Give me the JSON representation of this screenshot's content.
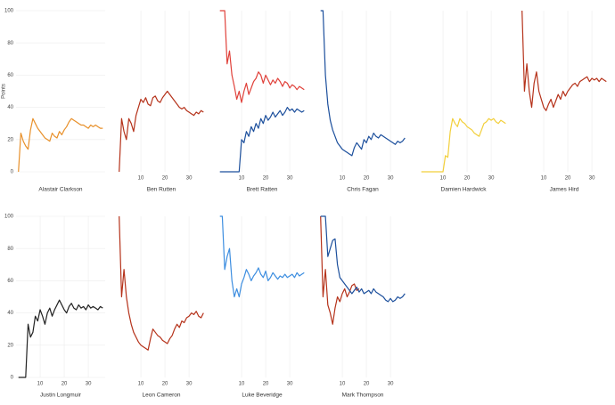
{
  "chart_data": [
    {
      "type": "line",
      "title": "Alastair Clarkson",
      "y_label": "Points",
      "xlim": [
        0,
        37
      ],
      "ylim": [
        0,
        100
      ],
      "yticks": [
        0,
        20,
        40,
        60,
        80,
        100
      ],
      "grid": true,
      "x": [
        1,
        2,
        3,
        4,
        5,
        6,
        7,
        8,
        9,
        10,
        11,
        12,
        13,
        14,
        15,
        16,
        17,
        18,
        19,
        20,
        21,
        22,
        23,
        24,
        25,
        26,
        27,
        28,
        29,
        30,
        31,
        32,
        33,
        34,
        35,
        36
      ],
      "series": [
        {
          "name": "Alastair Clarkson",
          "color": "#e8902a",
          "values": [
            0,
            24,
            19,
            16,
            14,
            26,
            33,
            30,
            27,
            25,
            23,
            21,
            20,
            19,
            24,
            22,
            21,
            25,
            23,
            26,
            28,
            31,
            33,
            32,
            31,
            30,
            29,
            29,
            28,
            27,
            29,
            28,
            29,
            28,
            27,
            27
          ]
        }
      ]
    },
    {
      "type": "line",
      "title": "Ben Rutten",
      "xlim": [
        0,
        37
      ],
      "ylim": [
        0,
        100
      ],
      "xticks": [
        10,
        20,
        30
      ],
      "grid": true,
      "x": [
        1,
        2,
        3,
        4,
        5,
        6,
        7,
        8,
        9,
        10,
        11,
        12,
        13,
        14,
        15,
        16,
        17,
        18,
        19,
        20,
        21,
        22,
        23,
        24,
        25,
        26,
        27,
        28,
        29,
        30,
        31,
        32,
        33,
        34,
        35,
        36
      ],
      "series": [
        {
          "name": "Ben Rutten",
          "color": "#b5321a",
          "values": [
            0,
            33,
            25,
            20,
            33,
            30,
            25,
            35,
            40,
            45,
            43,
            46,
            42,
            41,
            46,
            47,
            44,
            43,
            46,
            48,
            50,
            48,
            46,
            44,
            42,
            40,
            39,
            40,
            38,
            37,
            36,
            35,
            37,
            36,
            38,
            37
          ]
        }
      ]
    },
    {
      "type": "line",
      "title": "Brett Ratten",
      "xlim": [
        0,
        37
      ],
      "ylim": [
        0,
        100
      ],
      "xticks": [
        10,
        20,
        30
      ],
      "grid": true,
      "x": [
        1,
        2,
        3,
        4,
        5,
        6,
        7,
        8,
        9,
        10,
        11,
        12,
        13,
        14,
        15,
        16,
        17,
        18,
        19,
        20,
        21,
        22,
        23,
        24,
        25,
        26,
        27,
        28,
        29,
        30,
        31,
        32,
        33,
        34,
        35,
        36
      ],
      "series": [
        {
          "name": "Brett Ratten (red)",
          "color": "#e0413a",
          "values": [
            100,
            100,
            100,
            67,
            75,
            60,
            53,
            45,
            50,
            43,
            50,
            55,
            48,
            52,
            56,
            58,
            62,
            60,
            55,
            60,
            57,
            54,
            57,
            55,
            58,
            56,
            53,
            56,
            55,
            52,
            54,
            53,
            51,
            53,
            52,
            51
          ]
        },
        {
          "name": "Brett Ratten (blue)",
          "color": "#1c4f9c",
          "values": [
            0,
            0,
            0,
            0,
            0,
            0,
            0,
            0,
            0,
            20,
            18,
            25,
            22,
            28,
            25,
            30,
            27,
            33,
            30,
            35,
            32,
            34,
            37,
            34,
            36,
            38,
            35,
            37,
            40,
            38,
            39,
            37,
            39,
            38,
            37,
            38
          ]
        }
      ]
    },
    {
      "type": "line",
      "title": "Chris Fagan",
      "xlim": [
        0,
        37
      ],
      "ylim": [
        0,
        100
      ],
      "xticks": [
        10,
        20,
        30
      ],
      "grid": true,
      "x": [
        1,
        2,
        3,
        4,
        5,
        6,
        7,
        8,
        9,
        10,
        11,
        12,
        13,
        14,
        15,
        16,
        17,
        18,
        19,
        20,
        21,
        22,
        23,
        24,
        25,
        26,
        27,
        28,
        29,
        30,
        31,
        32,
        33,
        34,
        35,
        36
      ],
      "series": [
        {
          "name": "Chris Fagan",
          "color": "#1c4f9c",
          "values": [
            100,
            100,
            60,
            42,
            32,
            26,
            22,
            18,
            16,
            14,
            13,
            12,
            11,
            10,
            15,
            18,
            16,
            14,
            20,
            18,
            22,
            20,
            24,
            22,
            21,
            23,
            22,
            21,
            20,
            19,
            18,
            17,
            19,
            18,
            19,
            21
          ]
        }
      ]
    },
    {
      "type": "line",
      "title": "Damien Hardwick",
      "xlim": [
        0,
        37
      ],
      "ylim": [
        0,
        100
      ],
      "xticks": [
        10,
        20,
        30
      ],
      "grid": true,
      "x": [
        1,
        2,
        3,
        4,
        5,
        6,
        7,
        8,
        9,
        10,
        11,
        12,
        13,
        14,
        15,
        16,
        17,
        18,
        19,
        20,
        21,
        22,
        23,
        24,
        25,
        26,
        27,
        28,
        29,
        30,
        31,
        32,
        33,
        34,
        35,
        36
      ],
      "series": [
        {
          "name": "Damien Hardwick",
          "color": "#f2cf3a",
          "values": [
            0,
            0,
            0,
            0,
            0,
            0,
            0,
            0,
            0,
            0,
            10,
            9,
            25,
            33,
            30,
            28,
            33,
            31,
            30,
            28,
            27,
            26,
            24,
            23,
            22,
            26,
            30,
            31,
            33,
            32,
            33,
            31,
            30,
            32,
            31,
            30
          ]
        }
      ]
    },
    {
      "type": "line",
      "title": "James Hird",
      "xlim": [
        0,
        37
      ],
      "ylim": [
        0,
        100
      ],
      "xticks": [
        10,
        20,
        30
      ],
      "grid": true,
      "x": [
        1,
        2,
        3,
        4,
        5,
        6,
        7,
        8,
        9,
        10,
        11,
        12,
        13,
        14,
        15,
        16,
        17,
        18,
        19,
        20,
        21,
        22,
        23,
        24,
        25,
        26,
        27,
        28,
        29,
        30,
        31,
        32,
        33,
        34,
        35,
        36
      ],
      "series": [
        {
          "name": "James Hird",
          "color": "#b5321a",
          "values": [
            100,
            50,
            67,
            50,
            40,
            55,
            62,
            50,
            45,
            40,
            38,
            42,
            45,
            40,
            44,
            48,
            45,
            50,
            47,
            50,
            52,
            54,
            55,
            53,
            56,
            57,
            58,
            59,
            56,
            58,
            57,
            58,
            56,
            58,
            57,
            56
          ]
        }
      ]
    },
    {
      "type": "line",
      "title": "Justin Longmuir",
      "xlim": [
        0,
        37
      ],
      "ylim": [
        0,
        100
      ],
      "yticks": [
        0,
        20,
        40,
        60,
        80,
        100
      ],
      "xticks": [
        10,
        20,
        30
      ],
      "grid": true,
      "x": [
        1,
        2,
        3,
        4,
        5,
        6,
        7,
        8,
        9,
        10,
        11,
        12,
        13,
        14,
        15,
        16,
        17,
        18,
        19,
        20,
        21,
        22,
        23,
        24,
        25,
        26,
        27,
        28,
        29,
        30,
        31,
        32,
        33,
        34,
        35,
        36
      ],
      "series": [
        {
          "name": "Justin Longmuir",
          "color": "#222222",
          "values": [
            0,
            0,
            0,
            0,
            33,
            25,
            28,
            38,
            35,
            42,
            38,
            33,
            40,
            43,
            38,
            42,
            45,
            48,
            45,
            42,
            40,
            44,
            46,
            43,
            42,
            45,
            43,
            44,
            42,
            45,
            43,
            44,
            43,
            42,
            44,
            43
          ]
        }
      ]
    },
    {
      "type": "line",
      "title": "Leon Cameron",
      "xlim": [
        0,
        37
      ],
      "ylim": [
        0,
        100
      ],
      "xticks": [
        10,
        20,
        30
      ],
      "grid": true,
      "x": [
        1,
        2,
        3,
        4,
        5,
        6,
        7,
        8,
        9,
        10,
        11,
        12,
        13,
        14,
        15,
        16,
        17,
        18,
        19,
        20,
        21,
        22,
        23,
        24,
        25,
        26,
        27,
        28,
        29,
        30,
        31,
        32,
        33,
        34,
        35,
        36
      ],
      "series": [
        {
          "name": "Leon Cameron",
          "color": "#b5321a",
          "values": [
            100,
            50,
            67,
            50,
            40,
            33,
            28,
            25,
            22,
            20,
            19,
            18,
            17,
            24,
            30,
            28,
            26,
            25,
            23,
            22,
            21,
            24,
            26,
            30,
            33,
            31,
            35,
            34,
            37,
            38,
            40,
            39,
            41,
            38,
            37,
            40
          ]
        }
      ]
    },
    {
      "type": "line",
      "title": "Luke Beveridge",
      "xlim": [
        0,
        37
      ],
      "ylim": [
        0,
        100
      ],
      "xticks": [
        10,
        20,
        30
      ],
      "grid": true,
      "x": [
        1,
        2,
        3,
        4,
        5,
        6,
        7,
        8,
        9,
        10,
        11,
        12,
        13,
        14,
        15,
        16,
        17,
        18,
        19,
        20,
        21,
        22,
        23,
        24,
        25,
        26,
        27,
        28,
        29,
        30,
        31,
        32,
        33,
        34,
        35,
        36
      ],
      "series": [
        {
          "name": "Luke Beveridge",
          "color": "#3d8ee0",
          "values": [
            100,
            100,
            67,
            75,
            80,
            60,
            50,
            55,
            50,
            58,
            62,
            67,
            64,
            60,
            63,
            65,
            68,
            64,
            62,
            66,
            60,
            62,
            65,
            63,
            61,
            63,
            62,
            64,
            62,
            63,
            64,
            62,
            65,
            63,
            64,
            65
          ]
        }
      ]
    },
    {
      "type": "line",
      "title": "Mark Thompson",
      "xlim": [
        0,
        37
      ],
      "ylim": [
        0,
        100
      ],
      "xticks": [
        10,
        20,
        30
      ],
      "grid": true,
      "x": [
        1,
        2,
        3,
        4,
        5,
        6,
        7,
        8,
        9,
        10,
        11,
        12,
        13,
        14,
        15,
        16,
        17,
        18,
        19,
        20,
        21,
        22,
        23,
        24,
        25,
        26,
        27,
        28,
        29,
        30,
        31,
        32,
        33,
        34,
        35,
        36
      ],
      "series": [
        {
          "name": "Mark Thompson (red)",
          "color": "#b5321a",
          "values": [
            100,
            50,
            67,
            45,
            40,
            33,
            43,
            50,
            47,
            52,
            55,
            50,
            53,
            57,
            58,
            54,
            55,
            null,
            null,
            null,
            null,
            null,
            null,
            null,
            null,
            null,
            null,
            null,
            null,
            null,
            null,
            null,
            null,
            null,
            null,
            null
          ]
        },
        {
          "name": "Mark Thompson (blue)",
          "color": "#1c4f9c",
          "values": [
            100,
            100,
            100,
            75,
            80,
            85,
            86,
            70,
            62,
            60,
            58,
            56,
            54,
            52,
            54,
            56,
            53,
            55,
            52,
            53,
            54,
            52,
            55,
            53,
            52,
            51,
            50,
            48,
            47,
            49,
            47,
            48,
            50,
            49,
            50,
            52
          ]
        }
      ]
    }
  ]
}
